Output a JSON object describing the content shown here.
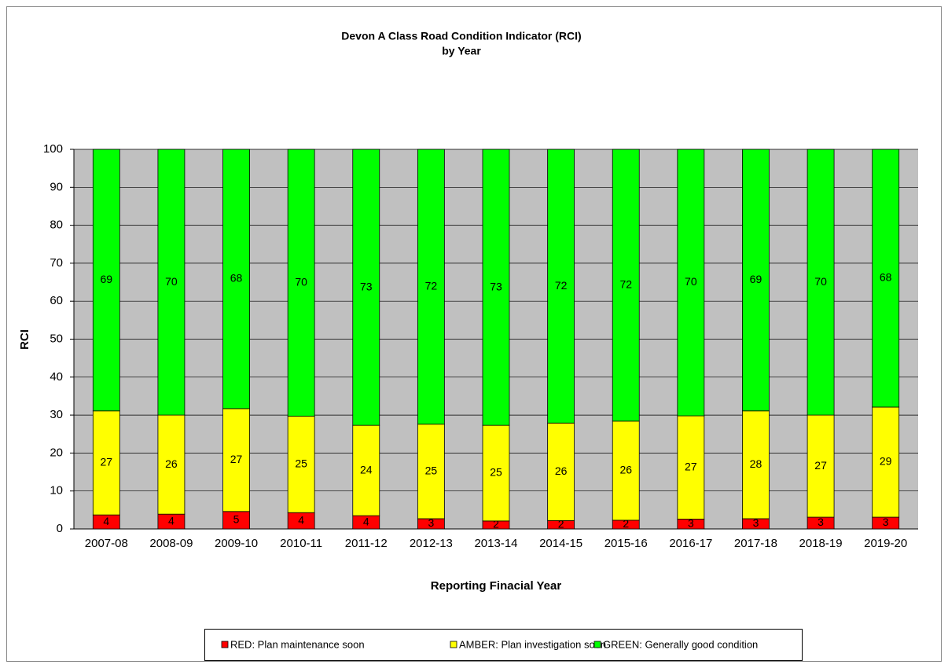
{
  "chart_data": {
    "type": "stacked_bar",
    "title": "Devon A Class Road Condition Indicator (RCI)",
    "subtitle": "by Year",
    "y_label": "RCI",
    "x_label": "Reporting Finacial Year",
    "categories": [
      "2007-08",
      "2008-09",
      "2009-10",
      "2010-11",
      "2011-12",
      "2012-13",
      "2013-14",
      "2014-15",
      "2015-16",
      "2016-17",
      "2017-18",
      "2018-19",
      "2019-20"
    ],
    "series": [
      {
        "name": "RED: Plan maintenance soon",
        "color": "#ff0000",
        "values": [
          3.7,
          3.9,
          4.6,
          4.3,
          3.5,
          2.7,
          2.1,
          2.2,
          2.3,
          2.6,
          2.7,
          3.1,
          3.1
        ],
        "value_labels": [
          "4",
          "4",
          "5",
          "4",
          "4",
          "3",
          "2",
          "2",
          "2",
          "3",
          "3",
          "3",
          "3"
        ]
      },
      {
        "name": "AMBER: Plan investigation soon",
        "color": "#ffff00",
        "values": [
          27.4,
          26.1,
          27.1,
          25.4,
          23.8,
          24.9,
          25.2,
          25.7,
          26.1,
          27.2,
          28.4,
          26.9,
          29.0
        ],
        "value_labels": [
          "27",
          "26",
          "27",
          "25",
          "24",
          "25",
          "25",
          "26",
          "26",
          "27",
          "28",
          "27",
          "29"
        ]
      },
      {
        "name": "GREEN: Generally good condition",
        "color": "#00ff00",
        "values": [
          68.9,
          70.0,
          68.3,
          70.3,
          72.7,
          72.4,
          72.7,
          72.1,
          71.6,
          70.2,
          68.9,
          70.0,
          67.9
        ],
        "value_labels": [
          "69",
          "70",
          "68",
          "70",
          "73",
          "72",
          "73",
          "72",
          "72",
          "70",
          "69",
          "70",
          "68"
        ]
      }
    ],
    "ylim": [
      0,
      100
    ],
    "yticks": [
      0,
      10,
      20,
      30,
      40,
      50,
      60,
      70,
      80,
      90,
      100
    ],
    "grid": true,
    "legend": "bottom"
  }
}
